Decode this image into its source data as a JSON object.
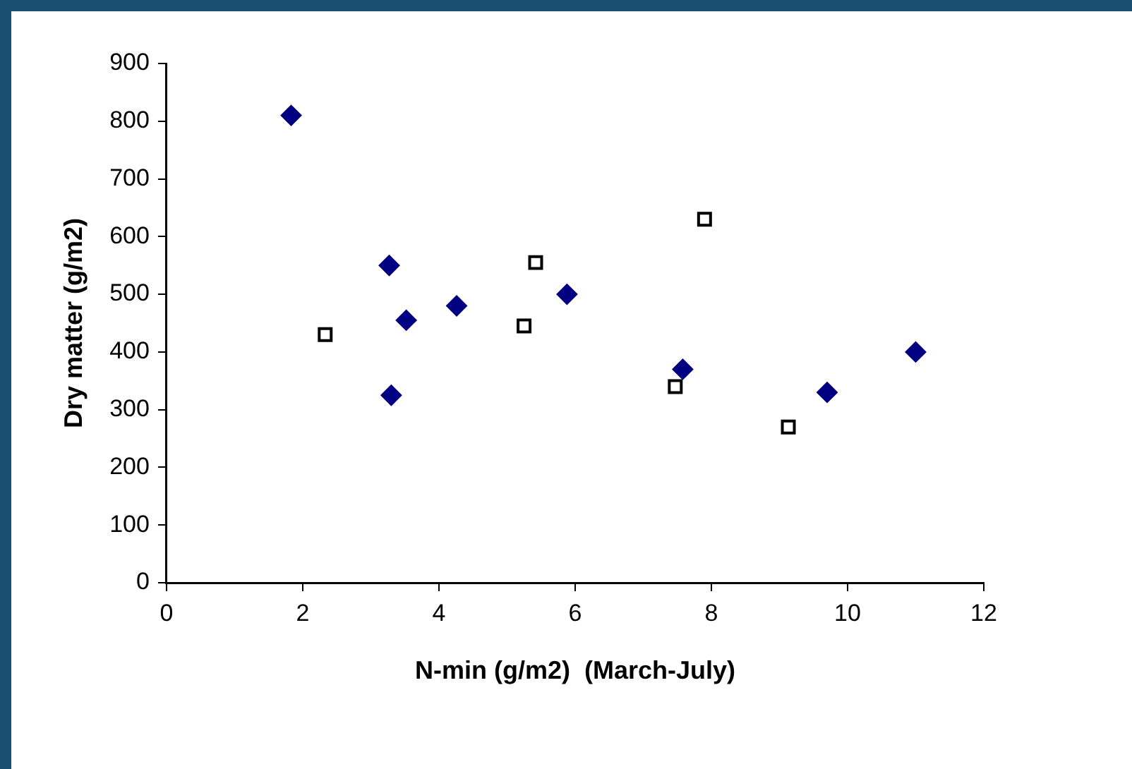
{
  "chart_data": {
    "type": "scatter",
    "xlabel": "N-min (g/m2)  (March-July)",
    "ylabel": "Dry matter (g/m2)",
    "xlim": [
      0,
      12
    ],
    "xticks": [
      0,
      2,
      4,
      6,
      8,
      10,
      12
    ],
    "ylim": [
      0,
      900
    ],
    "yticks": [
      0,
      100,
      200,
      300,
      400,
      500,
      600,
      700,
      800,
      900
    ],
    "grid": false,
    "legend": false,
    "series": [
      {
        "color": "#000080",
        "marker": "diamond",
        "x": [
          1.83,
          3.27,
          3.3,
          3.52,
          4.26,
          5.88,
          7.58,
          9.7,
          11.0
        ],
        "values": [
          810,
          550,
          325,
          455,
          480,
          500,
          370,
          330,
          400
        ]
      },
      {
        "color": "#000000",
        "marker": "square",
        "x": [
          2.33,
          5.42,
          5.25,
          7.9,
          7.47,
          9.13
        ],
        "values": [
          430,
          555,
          445,
          630,
          340,
          270
        ]
      }
    ]
  }
}
